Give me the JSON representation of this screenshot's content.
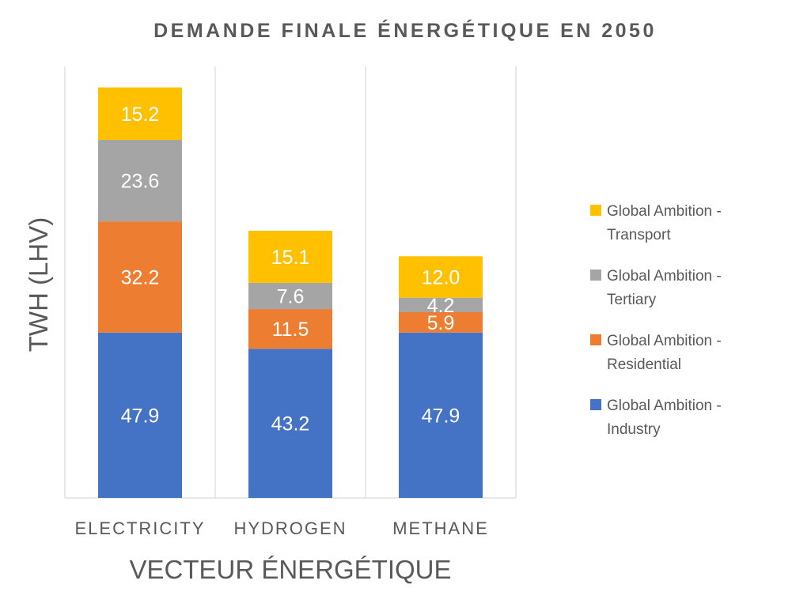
{
  "chart_data": {
    "type": "bar",
    "stacked": true,
    "title": "DEMANDE FINALE ÉNERGÉTIQUE EN 2050",
    "xlabel": "VECTEUR ÉNERGÉTIQUE",
    "ylabel": "TWH (LHV)",
    "categories": [
      "ELECTRICITY",
      "HYDROGEN",
      "METHANE"
    ],
    "ylim": [
      0,
      125
    ],
    "grid": "vertical",
    "legend": "right",
    "series": [
      {
        "name": "Global Ambition - Industry",
        "color": "#4472C4",
        "values": [
          47.9,
          43.2,
          47.9
        ],
        "labels": [
          "47.9",
          "43.2",
          "47.9"
        ]
      },
      {
        "name": "Global Ambition - Residential",
        "color": "#ED7D31",
        "values": [
          32.2,
          11.5,
          5.9
        ],
        "labels": [
          "32.2",
          "11.5",
          "5.9"
        ]
      },
      {
        "name": "Global Ambition - Tertiary",
        "color": "#A5A5A5",
        "values": [
          23.6,
          7.6,
          4.2
        ],
        "labels": [
          "23.6",
          "7.6",
          "4.2"
        ]
      },
      {
        "name": "Global Ambition - Transport",
        "color": "#FFC000",
        "values": [
          15.2,
          15.1,
          12.0
        ],
        "labels": [
          "15.2",
          "15.1",
          "12.0"
        ]
      }
    ],
    "legend_lines": [
      [
        "Global Ambition -",
        "Transport"
      ],
      [
        "Global Ambition -",
        "Tertiary"
      ],
      [
        "Global Ambition -",
        "Residential"
      ],
      [
        "Global Ambition -",
        "Industry"
      ]
    ]
  }
}
